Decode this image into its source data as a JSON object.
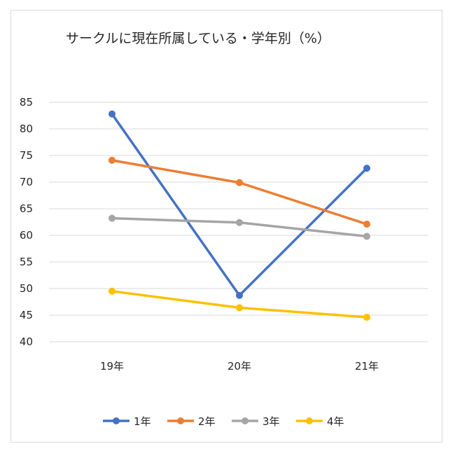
{
  "chart_data": {
    "type": "line",
    "title": "サークルに現在所属している・学年別（%）",
    "categories": [
      "19年",
      "20年",
      "21年"
    ],
    "ylim": [
      40,
      85
    ],
    "yticks": [
      40,
      45,
      50,
      55,
      60,
      65,
      70,
      75,
      80,
      85
    ],
    "grid": true,
    "legend_position": "bottom",
    "series": [
      {
        "name": "1年",
        "color": "#4472c4",
        "values": [
          82.8,
          48.7,
          72.6
        ]
      },
      {
        "name": "2年",
        "color": "#ed7d31",
        "values": [
          74.1,
          69.9,
          62.1
        ]
      },
      {
        "name": "3年",
        "color": "#a5a5a5",
        "values": [
          63.2,
          62.4,
          59.8
        ]
      },
      {
        "name": "4年",
        "color": "#ffc000",
        "values": [
          49.5,
          46.4,
          44.6
        ]
      }
    ]
  }
}
